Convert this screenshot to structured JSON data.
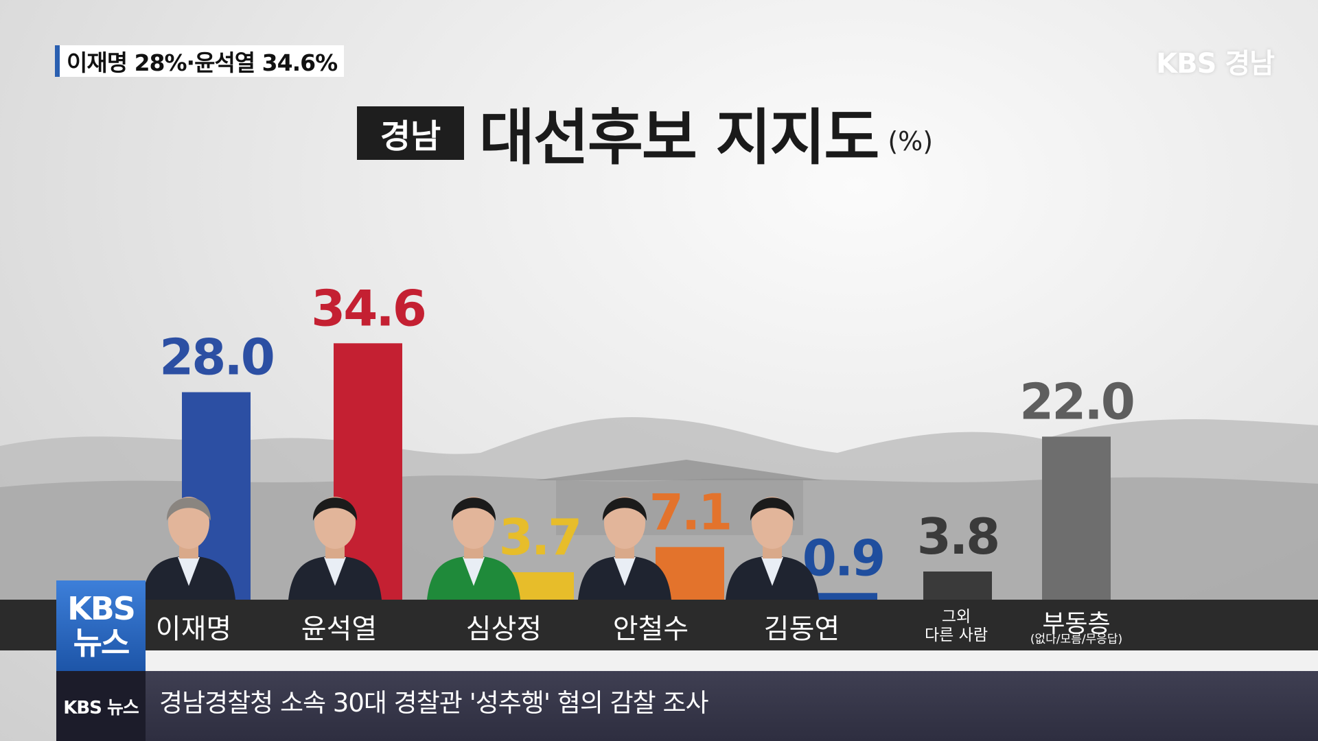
{
  "headline": "이재명 28%·윤석열 34.6%",
  "channel_logo": "KBS 경남",
  "title": {
    "region": "경남",
    "main": "대선후보 지지도",
    "unit": "(%)"
  },
  "chart_data": {
    "type": "bar",
    "title": "경남 대선후보 지지도",
    "unit": "%",
    "categories": [
      "이재명",
      "윤석열",
      "심상정",
      "안철수",
      "김동연",
      "그외 다른 사람",
      "부동층 (없다/모름/무응답)"
    ],
    "values": [
      28.0,
      34.6,
      3.7,
      7.1,
      0.9,
      3.8,
      22.0
    ],
    "value_labels": [
      "28.0",
      "34.6",
      "3.7",
      "7.1",
      "0.9",
      "3.8",
      "22.0"
    ],
    "colors": [
      "#2c4fa3",
      "#c42032",
      "#e7bd2a",
      "#e3732c",
      "#1f4e9e",
      "#3a3a3a",
      "#6e6e6e"
    ],
    "label_colors": [
      "#2c4fa3",
      "#c42032",
      "#e7bd2a",
      "#e3732c",
      "#1f4e9e",
      "#3a3a3a",
      "#5e5e5e"
    ],
    "photos": [
      true,
      true,
      true,
      true,
      true,
      false,
      false
    ]
  },
  "labels": {
    "c1": "이재명",
    "c2": "윤석열",
    "c3": "심상정",
    "c4": "안철수",
    "c5": "김동연",
    "c6_line1": "그외",
    "c6_line2": "다른 사람",
    "c7": "부동층",
    "c7_sub": "(없다/모름/무응답)"
  },
  "kbs_box": {
    "line1": "KBS",
    "line2": "뉴스"
  },
  "ticker": {
    "logo": "KBS 뉴스",
    "text": "경남경찰청 소속 30대 경찰관 '성추행' 혐의 감찰 조사"
  }
}
